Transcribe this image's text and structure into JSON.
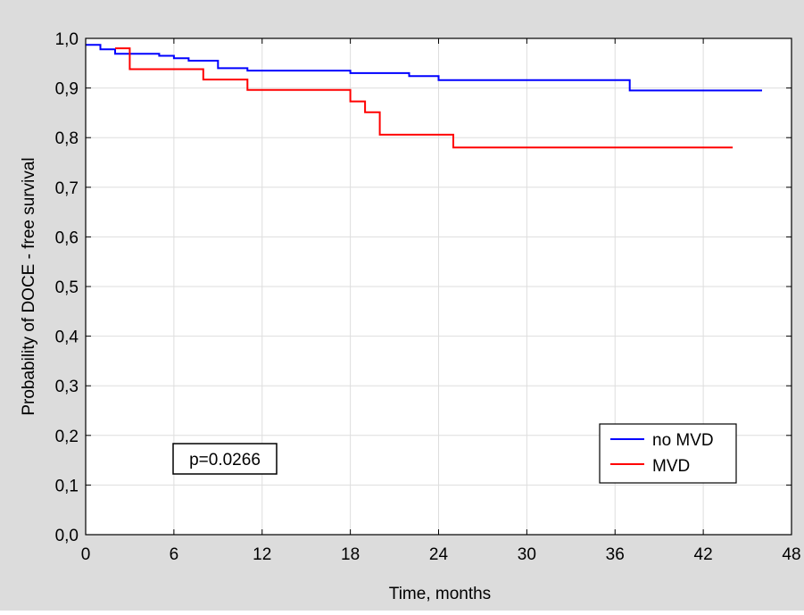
{
  "chart_data": {
    "type": "line",
    "title": "",
    "xlabel": "Time, months",
    "ylabel": "Probability of DOCE - free survival",
    "xlim": [
      0,
      48
    ],
    "ylim": [
      0,
      1.0
    ],
    "x_ticks": [
      "0",
      "6",
      "12",
      "18",
      "24",
      "30",
      "36",
      "42",
      "48"
    ],
    "y_ticks": [
      "0,0",
      "0,1",
      "0,2",
      "0,3",
      "0,4",
      "0,5",
      "0,6",
      "0,7",
      "0,8",
      "0,9",
      "1,0"
    ],
    "grid": true,
    "step": true,
    "legend_position": "bottom-right",
    "annotation": "p=0.0266",
    "series": [
      {
        "name": "no MVD",
        "color": "#0000ff",
        "x": [
          0,
          1,
          2,
          5,
          6,
          7,
          9,
          11,
          18,
          22,
          24,
          37,
          46
        ],
        "y": [
          0.987,
          0.978,
          0.969,
          0.965,
          0.96,
          0.955,
          0.94,
          0.935,
          0.93,
          0.924,
          0.916,
          0.895,
          0.895
        ]
      },
      {
        "name": "MVD",
        "color": "#ff0000",
        "x": [
          2,
          3,
          8,
          11,
          18,
          19,
          20,
          25,
          44
        ],
        "y": [
          0.98,
          0.938,
          0.917,
          0.896,
          0.873,
          0.851,
          0.806,
          0.78,
          0.78
        ]
      }
    ]
  }
}
